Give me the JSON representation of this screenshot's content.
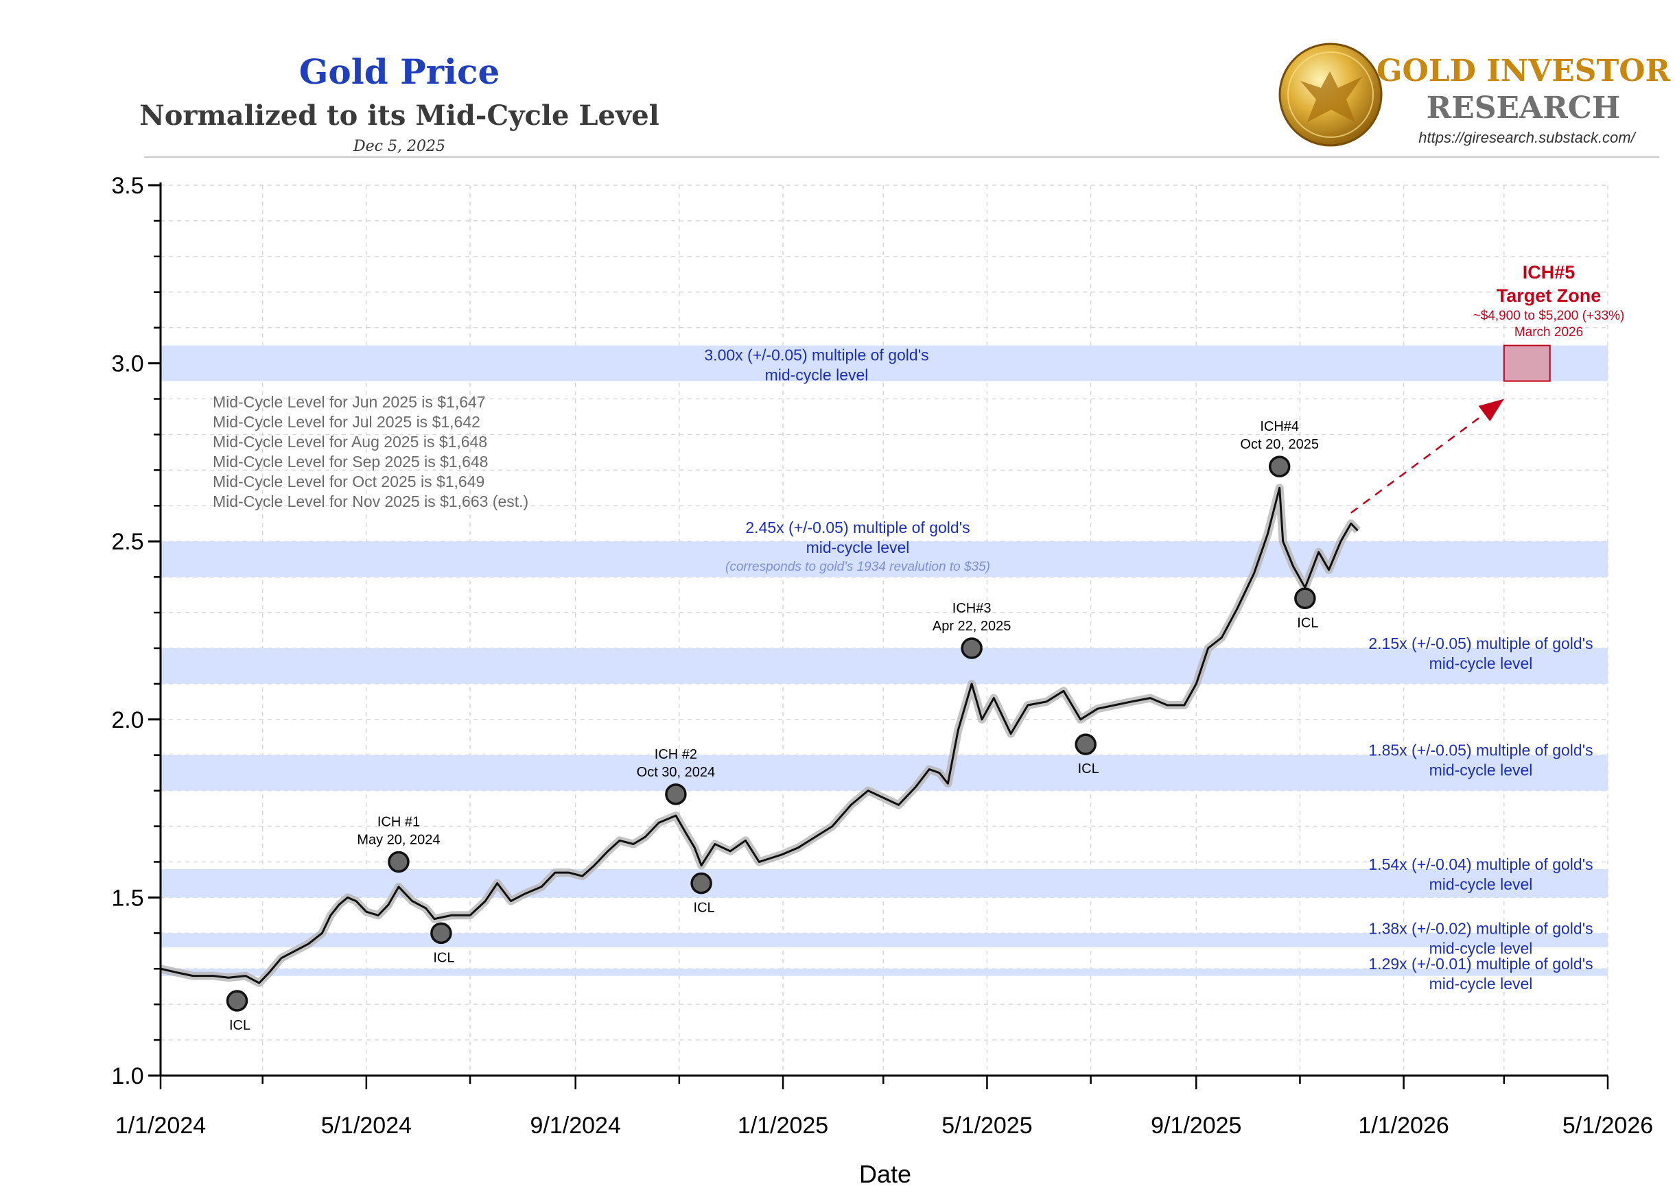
{
  "header": {
    "title": "Gold Price",
    "subtitle": "Normalized to its Mid-Cycle Level",
    "date": "Dec 5, 2025"
  },
  "brand": {
    "name_line1": "GOLD INVESTOR",
    "name_line2": "RESEARCH",
    "url": "https://giresearch.substack.com/",
    "logo_icon": "gold-eagle-coin-icon"
  },
  "colors": {
    "title_blue": "#1f3fbf",
    "band_fill": "#d6e0ff",
    "band_text": "#1a2fb5",
    "target_red": "#c4001a",
    "target_box_fill": "#d9a3b3",
    "brand_gold": "#c8870f",
    "brand_gray": "#707070",
    "note_gray": "#6a6a6a"
  },
  "chart_data": {
    "type": "line",
    "title": "Gold Price Normalized to its Mid-Cycle Level",
    "xlabel": "Date",
    "ylabel": "",
    "ylim": [
      1.0,
      3.5
    ],
    "xlim": [
      "1/1/2024",
      "5/1/2026"
    ],
    "grid": true,
    "y_ticks": [
      "1.0",
      "1.5",
      "2.0",
      "2.5",
      "3.0",
      "3.5"
    ],
    "x_ticks": [
      "1/1/2024",
      "5/1/2024",
      "9/1/2024",
      "1/1/2025",
      "5/1/2025",
      "9/1/2025",
      "1/1/2026",
      "5/1/2026"
    ],
    "series": [
      {
        "name": "Gold price / mid-cycle level",
        "points": [
          [
            "2024-01-01",
            1.3
          ],
          [
            "2024-01-10",
            1.29
          ],
          [
            "2024-01-20",
            1.28
          ],
          [
            "2024-02-01",
            1.28
          ],
          [
            "2024-02-10",
            1.275
          ],
          [
            "2024-02-20",
            1.28
          ],
          [
            "2024-02-28",
            1.26
          ],
          [
            "2024-03-05",
            1.29
          ],
          [
            "2024-03-12",
            1.33
          ],
          [
            "2024-03-20",
            1.35
          ],
          [
            "2024-03-28",
            1.37
          ],
          [
            "2024-04-05",
            1.4
          ],
          [
            "2024-04-10",
            1.45
          ],
          [
            "2024-04-15",
            1.48
          ],
          [
            "2024-04-20",
            1.5
          ],
          [
            "2024-04-25",
            1.49
          ],
          [
            "2024-05-01",
            1.46
          ],
          [
            "2024-05-08",
            1.45
          ],
          [
            "2024-05-14",
            1.48
          ],
          [
            "2024-05-20",
            1.53
          ],
          [
            "2024-05-28",
            1.49
          ],
          [
            "2024-06-05",
            1.47
          ],
          [
            "2024-06-10",
            1.44
          ],
          [
            "2024-06-20",
            1.45
          ],
          [
            "2024-07-01",
            1.45
          ],
          [
            "2024-07-10",
            1.49
          ],
          [
            "2024-07-17",
            1.54
          ],
          [
            "2024-07-25",
            1.49
          ],
          [
            "2024-08-02",
            1.51
          ],
          [
            "2024-08-12",
            1.53
          ],
          [
            "2024-08-20",
            1.57
          ],
          [
            "2024-08-28",
            1.57
          ],
          [
            "2024-09-05",
            1.56
          ],
          [
            "2024-09-12",
            1.59
          ],
          [
            "2024-09-20",
            1.63
          ],
          [
            "2024-09-27",
            1.66
          ],
          [
            "2024-10-05",
            1.65
          ],
          [
            "2024-10-12",
            1.67
          ],
          [
            "2024-10-20",
            1.71
          ],
          [
            "2024-10-30",
            1.73
          ],
          [
            "2024-11-05",
            1.68
          ],
          [
            "2024-11-10",
            1.64
          ],
          [
            "2024-11-14",
            1.59
          ],
          [
            "2024-11-22",
            1.65
          ],
          [
            "2024-12-01",
            1.63
          ],
          [
            "2024-12-10",
            1.66
          ],
          [
            "2024-12-18",
            1.6
          ],
          [
            "2024-12-31",
            1.62
          ],
          [
            "2025-01-10",
            1.64
          ],
          [
            "2025-01-20",
            1.67
          ],
          [
            "2025-01-30",
            1.7
          ],
          [
            "2025-02-10",
            1.76
          ],
          [
            "2025-02-20",
            1.8
          ],
          [
            "2025-03-01",
            1.78
          ],
          [
            "2025-03-10",
            1.76
          ],
          [
            "2025-03-20",
            1.81
          ],
          [
            "2025-03-28",
            1.86
          ],
          [
            "2025-04-03",
            1.85
          ],
          [
            "2025-04-08",
            1.82
          ],
          [
            "2025-04-14",
            1.97
          ],
          [
            "2025-04-22",
            2.1
          ],
          [
            "2025-04-28",
            2.0
          ],
          [
            "2025-05-05",
            2.06
          ],
          [
            "2025-05-15",
            1.96
          ],
          [
            "2025-05-25",
            2.04
          ],
          [
            "2025-06-05",
            2.05
          ],
          [
            "2025-06-15",
            2.08
          ],
          [
            "2025-06-25",
            2.0
          ],
          [
            "2025-07-05",
            2.03
          ],
          [
            "2025-07-15",
            2.04
          ],
          [
            "2025-07-25",
            2.05
          ],
          [
            "2025-08-05",
            2.06
          ],
          [
            "2025-08-15",
            2.04
          ],
          [
            "2025-08-25",
            2.04
          ],
          [
            "2025-09-01",
            2.1
          ],
          [
            "2025-09-08",
            2.2
          ],
          [
            "2025-09-16",
            2.23
          ],
          [
            "2025-09-25",
            2.31
          ],
          [
            "2025-10-05",
            2.41
          ],
          [
            "2025-10-13",
            2.52
          ],
          [
            "2025-10-20",
            2.65
          ],
          [
            "2025-10-22",
            2.5
          ],
          [
            "2025-10-28",
            2.43
          ],
          [
            "2025-11-04",
            2.37
          ],
          [
            "2025-11-12",
            2.47
          ],
          [
            "2025-11-18",
            2.42
          ],
          [
            "2025-11-25",
            2.5
          ],
          [
            "2025-12-01",
            2.55
          ],
          [
            "2025-12-05",
            2.53
          ]
        ]
      }
    ],
    "bands": [
      {
        "center": 3.0,
        "tol": 0.05,
        "label_line1": "3.00x (+/-0.05) multiple of gold's",
        "label_line2": "mid-cycle level",
        "position": "top-center"
      },
      {
        "center": 2.45,
        "tol": 0.05,
        "label_line1": "2.45x (+/-0.05) multiple of gold's",
        "label_line2": "mid-cycle level",
        "note": "(corresponds to gold's 1934 revalution to $35)",
        "position": "center"
      },
      {
        "center": 2.15,
        "tol": 0.05,
        "label_line1": "2.15x (+/-0.05) multiple of gold's",
        "label_line2": "mid-cycle level",
        "position": "right"
      },
      {
        "center": 1.85,
        "tol": 0.05,
        "label_line1": "1.85x (+/-0.05) multiple of gold's",
        "label_line2": "mid-cycle level",
        "position": "right"
      },
      {
        "center": 1.54,
        "tol": 0.04,
        "label_line1": "1.54x (+/-0.04) multiple of gold's",
        "label_line2": "mid-cycle level",
        "position": "right"
      },
      {
        "center": 1.38,
        "tol": 0.02,
        "label_line1": "1.38x (+/-0.02) multiple of gold's",
        "label_line2": "mid-cycle level",
        "position": "right"
      },
      {
        "center": 1.29,
        "tol": 0.01,
        "label_line1": "1.29x (+/-0.01) multiple of gold's",
        "label_line2": "mid-cycle level",
        "position": "right"
      }
    ],
    "markers": [
      {
        "date": "2024-02-15",
        "value": 1.21,
        "label": "ICL",
        "type": "low"
      },
      {
        "date": "2024-05-20",
        "value": 1.6,
        "label": "ICH #1",
        "date_label": "May 20, 2024",
        "type": "high"
      },
      {
        "date": "2024-06-14",
        "value": 1.4,
        "label": "ICL",
        "type": "low"
      },
      {
        "date": "2024-10-30",
        "value": 1.79,
        "label": "ICH #2",
        "date_label": "Oct 30, 2024",
        "type": "high"
      },
      {
        "date": "2024-11-14",
        "value": 1.54,
        "label": "ICL",
        "type": "low"
      },
      {
        "date": "2025-04-22",
        "value": 2.2,
        "label": "ICH#3",
        "date_label": "Apr 22, 2025",
        "type": "high"
      },
      {
        "date": "2025-06-28",
        "value": 1.93,
        "label": "ICL",
        "type": "low"
      },
      {
        "date": "2025-10-20",
        "value": 2.71,
        "label": "ICH#4",
        "date_label": "Oct 20, 2025",
        "type": "high"
      },
      {
        "date": "2025-11-04",
        "value": 2.34,
        "label": "ICL",
        "type": "low"
      }
    ],
    "mid_cycle_notes": [
      "Mid-Cycle Level for Jun 2025 is $1,647",
      "Mid-Cycle Level for Jul 2025 is $1,642",
      "Mid-Cycle Level for Aug 2025 is $1,648",
      "Mid-Cycle Level for Sep 2025 is $1,648",
      "Mid-Cycle Level for Oct 2025 is $1,649",
      "Mid-Cycle Level for Nov 2025 is $1,663 (est.)"
    ],
    "projection": {
      "from": [
        "2025-12-01",
        2.58
      ],
      "to": [
        "2026-03-01",
        2.9
      ]
    },
    "target_zone": {
      "title_line1": "ICH#5",
      "title_line2": "Target Zone",
      "detail": "~$4,900 to $5,200 (+33%)",
      "timing": "March 2026",
      "x_range": [
        "2026-03-01",
        "2026-03-28"
      ],
      "y_range": [
        2.95,
        3.05
      ]
    }
  }
}
